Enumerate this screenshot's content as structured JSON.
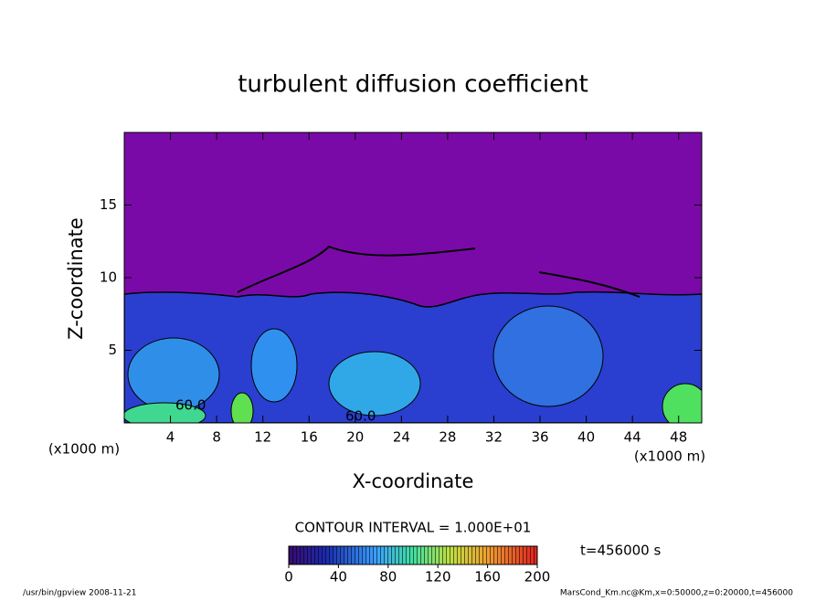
{
  "chart_data": {
    "type": "contour",
    "title": "turbulent diffusion coefficient",
    "x_label": "X-coordinate",
    "y_label": "Z-coordinate",
    "x_unit": "(x1000 m)",
    "y_unit": "(x1000 m)",
    "xlim": [
      0,
      50
    ],
    "ylim": [
      0,
      20
    ],
    "xticks": [
      4,
      8,
      12,
      16,
      20,
      24,
      28,
      32,
      36,
      40,
      44,
      48
    ],
    "yticks": [
      5,
      10,
      15
    ],
    "contour_labels": [
      "60.0",
      "60.0"
    ],
    "contour_interval": "CONTOUR INTERVAL = 1.000E+01",
    "time_label": "t=456000 s",
    "colorbar": {
      "clim": [
        0,
        200
      ],
      "ticks": [
        0,
        40,
        80,
        120,
        160,
        200
      ]
    },
    "footer_left": "/usr/bin/gpview   2008-11-21",
    "footer_right": "MarsCond_Km.nc@Km,x=0:50000,z=0:20000,t=456000"
  }
}
